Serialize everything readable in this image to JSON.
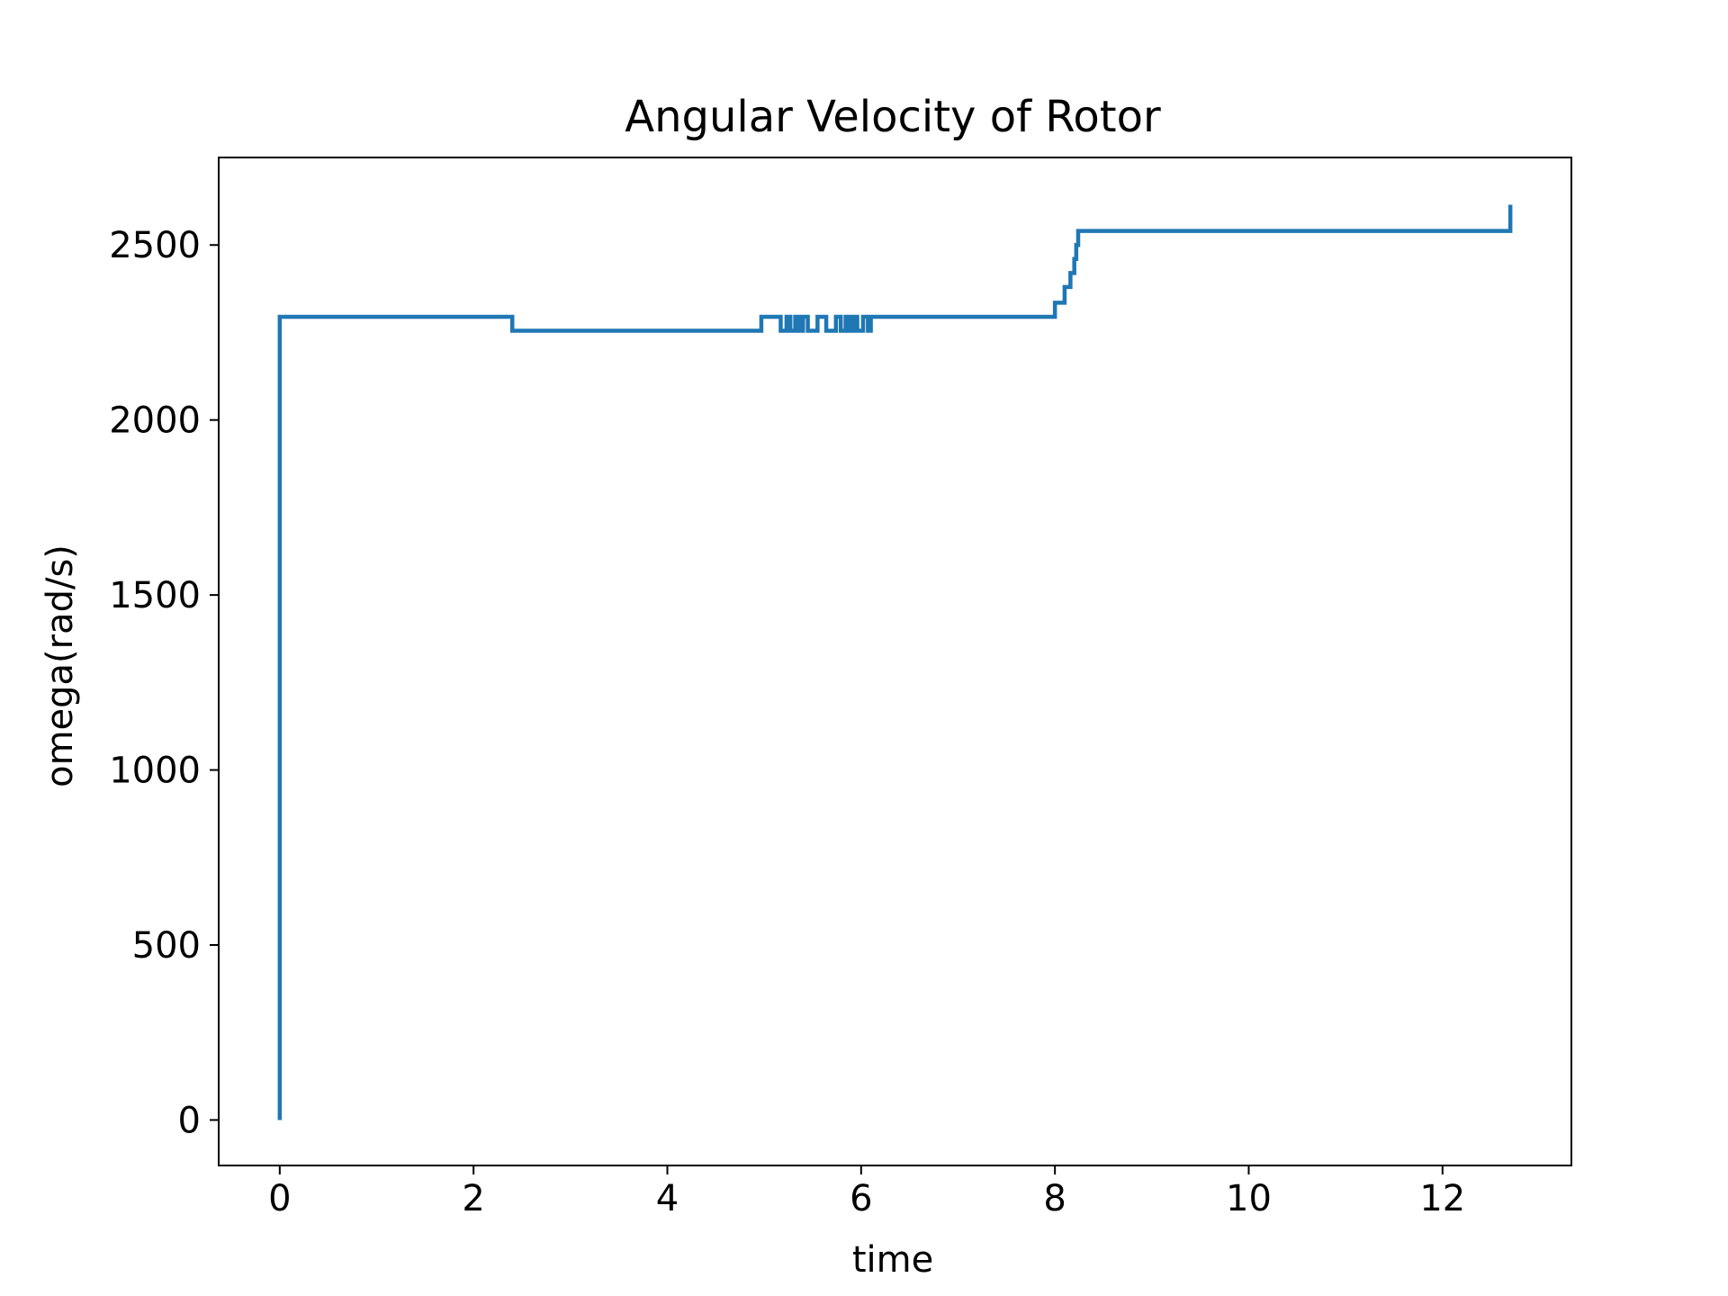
{
  "chart_data": {
    "type": "line",
    "title": "Angular Velocity of Rotor",
    "xlabel": "time",
    "ylabel": "omega(rad/s)",
    "xlim": [
      -0.63,
      13.33
    ],
    "ylim": [
      -130,
      2750
    ],
    "xticks": [
      0,
      2,
      4,
      6,
      8,
      10,
      12
    ],
    "yticks": [
      0,
      500,
      1000,
      1500,
      2000,
      2500
    ],
    "grid": false,
    "legend": false,
    "line_color": "#1f77b4",
    "series": [
      {
        "step": true,
        "x": [
          0.0,
          0.0,
          2.4,
          4.97,
          5.17,
          5.23,
          5.27,
          5.32,
          5.36,
          5.4,
          5.45,
          5.55,
          5.64,
          5.74,
          5.79,
          5.84,
          5.88,
          5.92,
          5.96,
          6.02,
          6.07,
          6.1,
          8.0,
          8.1,
          8.16,
          8.2,
          8.22,
          8.24,
          12.7
        ],
        "y": [
          0,
          2295,
          2255,
          2295,
          2255,
          2295,
          2255,
          2295,
          2255,
          2295,
          2255,
          2295,
          2255,
          2295,
          2255,
          2295,
          2255,
          2295,
          2255,
          2295,
          2255,
          2295,
          2335,
          2380,
          2420,
          2460,
          2500,
          2540,
          2615
        ]
      }
    ]
  }
}
